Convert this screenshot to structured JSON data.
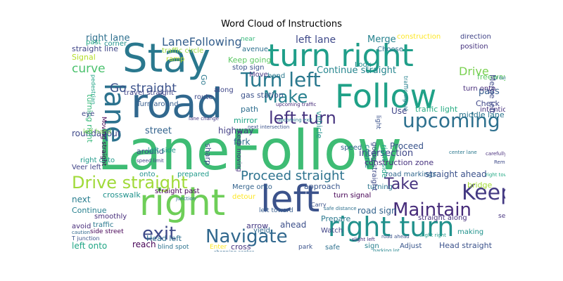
{
  "title": "Word Cloud of Instructions",
  "colormap": "viridis",
  "words": [
    {
      "text": "LaneFollow",
      "color": "#3ebc74"
    },
    {
      "text": "road",
      "color": "#31688e"
    },
    {
      "text": "Stay",
      "color": "#2a788e"
    },
    {
      "text": "turn right",
      "color": "#1f9e89"
    },
    {
      "text": "left",
      "color": "#3b528b"
    },
    {
      "text": "Follow",
      "color": "#1fa187"
    },
    {
      "text": "right",
      "color": "#6ece58"
    },
    {
      "text": "right turn",
      "color": "#21918c"
    },
    {
      "text": "lane",
      "color": "#2c728e"
    },
    {
      "text": "upcoming",
      "color": "#2d708e"
    },
    {
      "text": "Turn left",
      "color": "#2a788e"
    },
    {
      "text": "Make",
      "color": "#27808e"
    },
    {
      "text": "Keep",
      "color": "#443a83"
    },
    {
      "text": "Maintain",
      "color": "#472c7a"
    },
    {
      "text": "Navigate",
      "color": "#31688e"
    },
    {
      "text": "Drive straight",
      "color": "#a0da39"
    },
    {
      "text": "left turn",
      "color": "#46337f"
    },
    {
      "text": "exit",
      "color": "#3e4a89"
    },
    {
      "text": "Take",
      "color": "#46327e"
    },
    {
      "text": "Go straight",
      "color": "#3b528b"
    },
    {
      "text": "LaneFollowing",
      "color": "#355f8d"
    },
    {
      "text": "Proceed straight",
      "color": "#2c728e"
    },
    {
      "text": "Drive",
      "color": "#7ad151"
    },
    {
      "text": "curve",
      "color": "#4ac16d"
    },
    {
      "text": "Continue straight",
      "color": "#25858e"
    },
    {
      "text": "left lane",
      "color": "#3e4989"
    },
    {
      "text": "Merge",
      "color": "#26828e"
    },
    {
      "text": "right lane",
      "color": "#2e6f8e"
    },
    {
      "text": "straight line",
      "color": "#404688"
    },
    {
      "text": "Signal",
      "color": "#b5de2b"
    },
    {
      "text": "traffic circle",
      "color": "#9bd93c"
    },
    {
      "text": "construction",
      "color": "#fde725"
    },
    {
      "text": "direction",
      "color": "#414487"
    },
    {
      "text": "position",
      "color": "#46337f"
    },
    {
      "text": "pass",
      "color": "#365c8d"
    },
    {
      "text": "intersection",
      "color": "#3f4788"
    },
    {
      "text": "street",
      "color": "#33638d"
    },
    {
      "text": "highway",
      "color": "#433e85"
    },
    {
      "text": "fork",
      "color": "#2e6e8e"
    },
    {
      "text": "Proceed",
      "color": "#3a548c"
    },
    {
      "text": "roundabout",
      "color": "#3e4989"
    },
    {
      "text": "Veer left",
      "color": "#414487"
    },
    {
      "text": "right onto",
      "color": "#1f9a8a"
    },
    {
      "text": "around",
      "color": "#3c4f8a"
    },
    {
      "text": "next",
      "color": "#287d8e"
    },
    {
      "text": "Continue",
      "color": "#27808e"
    },
    {
      "text": "avoid",
      "color": "#472c7a"
    },
    {
      "text": "left onto",
      "color": "#21a685"
    },
    {
      "text": "reach",
      "color": "#440154"
    },
    {
      "text": "Head left",
      "color": "#2e6f8e"
    },
    {
      "text": "crosswalk",
      "color": "#20928c"
    },
    {
      "text": "straight past",
      "color": "#440154"
    },
    {
      "text": "smoothly",
      "color": "#472d7b"
    },
    {
      "text": "straight ahead",
      "color": "#3b528b"
    },
    {
      "text": "road markings",
      "color": "#31688e"
    },
    {
      "text": "bridge",
      "color": "#a5db36"
    },
    {
      "text": "straight along",
      "color": "#46327e"
    },
    {
      "text": "road sign",
      "color": "#33638d"
    },
    {
      "text": "arrow",
      "color": "#443983"
    },
    {
      "text": "ahead",
      "color": "#3c4f8a"
    },
    {
      "text": "approach",
      "color": "#39568c"
    },
    {
      "text": "turning",
      "color": "#2b758e"
    },
    {
      "text": "turning right",
      "color": "#35b779"
    },
    {
      "text": "Moving straight",
      "color": "#440154"
    },
    {
      "text": "traffic light",
      "color": "#25ab82"
    },
    {
      "text": "Use",
      "color": "#404588"
    },
    {
      "text": "middle lane",
      "color": "#2b748e"
    },
    {
      "text": "vehicle",
      "color": "#21918c"
    },
    {
      "text": "path",
      "color": "#2e6e8e"
    },
    {
      "text": "mirror",
      "color": "#20a386"
    },
    {
      "text": "gas station",
      "color": "#3b528b"
    },
    {
      "text": "Keep going",
      "color": "#5cc863"
    },
    {
      "text": "stop sign",
      "color": "#3b528b"
    },
    {
      "text": "Move",
      "color": "#443983"
    },
    {
      "text": "bend",
      "color": "#2a788e"
    },
    {
      "text": "avenue",
      "color": "#2d708e"
    },
    {
      "text": "near",
      "color": "#35b779"
    },
    {
      "text": "Choose",
      "color": "#2c728e"
    },
    {
      "text": "Look",
      "color": "#228c8d"
    },
    {
      "text": "freeway",
      "color": "#5ec962"
    },
    {
      "text": "Check",
      "color": "#3f4788"
    },
    {
      "text": "intention",
      "color": "#46327e"
    },
    {
      "text": "Merge left",
      "color": "#3e4989"
    },
    {
      "text": "turn onto",
      "color": "#472c7a"
    },
    {
      "text": "corner",
      "color": "#20928c"
    },
    {
      "text": "past",
      "color": "#22a884"
    },
    {
      "text": "ramp",
      "color": "#b8de29"
    },
    {
      "text": "Go",
      "color": "#2a788e"
    },
    {
      "text": "along",
      "color": "#3f4788"
    },
    {
      "text": "route",
      "color": "#3e4a89"
    },
    {
      "text": "travel straight",
      "color": "#414487"
    },
    {
      "text": "Turn around",
      "color": "#365d8d"
    },
    {
      "text": "left side",
      "color": "#1f968b"
    },
    {
      "text": "onto",
      "color": "#21918c"
    },
    {
      "text": "prepared",
      "color": "#1f9a8a"
    },
    {
      "text": "Merge onto",
      "color": "#33638d"
    },
    {
      "text": "detour",
      "color": "#fde725"
    },
    {
      "text": "yield",
      "color": "#31688e"
    },
    {
      "text": "Prepare",
      "color": "#2a788e"
    },
    {
      "text": "Watch",
      "color": "#414487"
    },
    {
      "text": "cross",
      "color": "#46327e"
    },
    {
      "text": "park",
      "color": "#3b528b"
    },
    {
      "text": "safe",
      "color": "#2d708e"
    },
    {
      "text": "sign",
      "color": "#27808e"
    },
    {
      "text": "Adjust",
      "color": "#39568c"
    },
    {
      "text": "Head straight",
      "color": "#3b528b"
    },
    {
      "text": "making",
      "color": "#20928c"
    },
    {
      "text": "see",
      "color": "#46337f"
    },
    {
      "text": "blind spot",
      "color": "#2c728e"
    },
    {
      "text": "Enter",
      "color": "#fde725"
    },
    {
      "text": "turn signal",
      "color": "#440154"
    },
    {
      "text": "speed",
      "color": "#33638d"
    },
    {
      "text": "course",
      "color": "#25858e"
    },
    {
      "text": "going straight",
      "color": "#3e4989"
    },
    {
      "text": "right side",
      "color": "#1fa187"
    },
    {
      "text": "light",
      "color": "#3b528b"
    },
    {
      "text": "sharp",
      "color": "#3e4a89"
    },
    {
      "text": "traffic",
      "color": "#2a788e"
    },
    {
      "text": "left hand",
      "color": "#7ad151"
    },
    {
      "text": "side street",
      "color": "#440154"
    },
    {
      "text": "T junction",
      "color": "#3b528b"
    },
    {
      "text": "left toward",
      "color": "#365d8d"
    },
    {
      "text": "construction zone",
      "color": "#46327e"
    },
    {
      "text": "Carry",
      "color": "#3b528b"
    },
    {
      "text": "eye",
      "color": "#3f4788"
    },
    {
      "text": "pedestrian",
      "color": "#20a386"
    },
    {
      "text": "traffic signal",
      "color": "#27808e"
    },
    {
      "text": "upcoming traffic",
      "color": "#472c7a"
    },
    {
      "text": "next intersection",
      "color": "#3b528b"
    },
    {
      "text": "speed limit",
      "color": "#414487"
    },
    {
      "text": "junction",
      "color": "#2c728e"
    },
    {
      "text": "Keep moving",
      "color": "#46327e"
    },
    {
      "text": "safe distance",
      "color": "#2d708e"
    },
    {
      "text": "shopping center",
      "color": "#31688e"
    },
    {
      "text": "parking lot",
      "color": "#25858e"
    },
    {
      "text": "upcoming exit",
      "color": "#2a788e"
    },
    {
      "text": "right toward",
      "color": "#22a884"
    },
    {
      "text": "U turn",
      "color": "#2c728e"
    },
    {
      "text": "Remain",
      "color": "#3e4a89"
    },
    {
      "text": "carefully",
      "color": "#472d7b"
    },
    {
      "text": "lane change",
      "color": "#443983"
    },
    {
      "text": "caution",
      "color": "#31688e"
    },
    {
      "text": "center lane",
      "color": "#2a788e"
    },
    {
      "text": "road ahead",
      "color": "#3b528b"
    },
    {
      "text": "slight left",
      "color": "#46327e"
    },
    {
      "text": "slight right",
      "color": "#1f9a8a"
    }
  ]
}
